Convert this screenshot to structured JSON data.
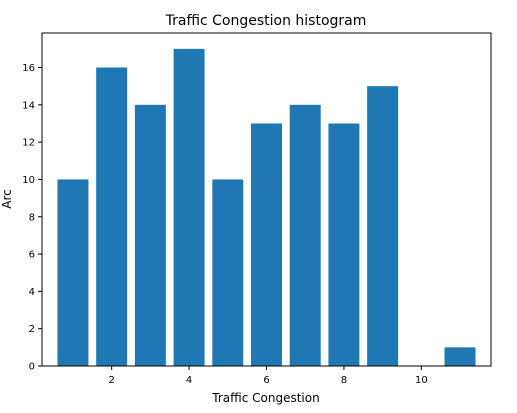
{
  "chart_data": {
    "type": "bar",
    "title": "Traffic Congestion histogram",
    "xlabel": "Traffic Congestion",
    "ylabel": "Arc",
    "x": [
      1,
      2,
      3,
      4,
      5,
      6,
      7,
      8,
      9,
      10,
      11
    ],
    "values": [
      10,
      16,
      14,
      17,
      10,
      13,
      14,
      13,
      15,
      0,
      1
    ],
    "xlim": [
      0.2,
      11.8
    ],
    "ylim": [
      0,
      17.85
    ],
    "xticks": [
      2,
      4,
      6,
      8,
      10
    ],
    "yticks": [
      0,
      2,
      4,
      6,
      8,
      10,
      12,
      14,
      16
    ],
    "bar_width": 0.8,
    "bar_color": "#1f77b4",
    "grid": false,
    "legend": "none"
  }
}
